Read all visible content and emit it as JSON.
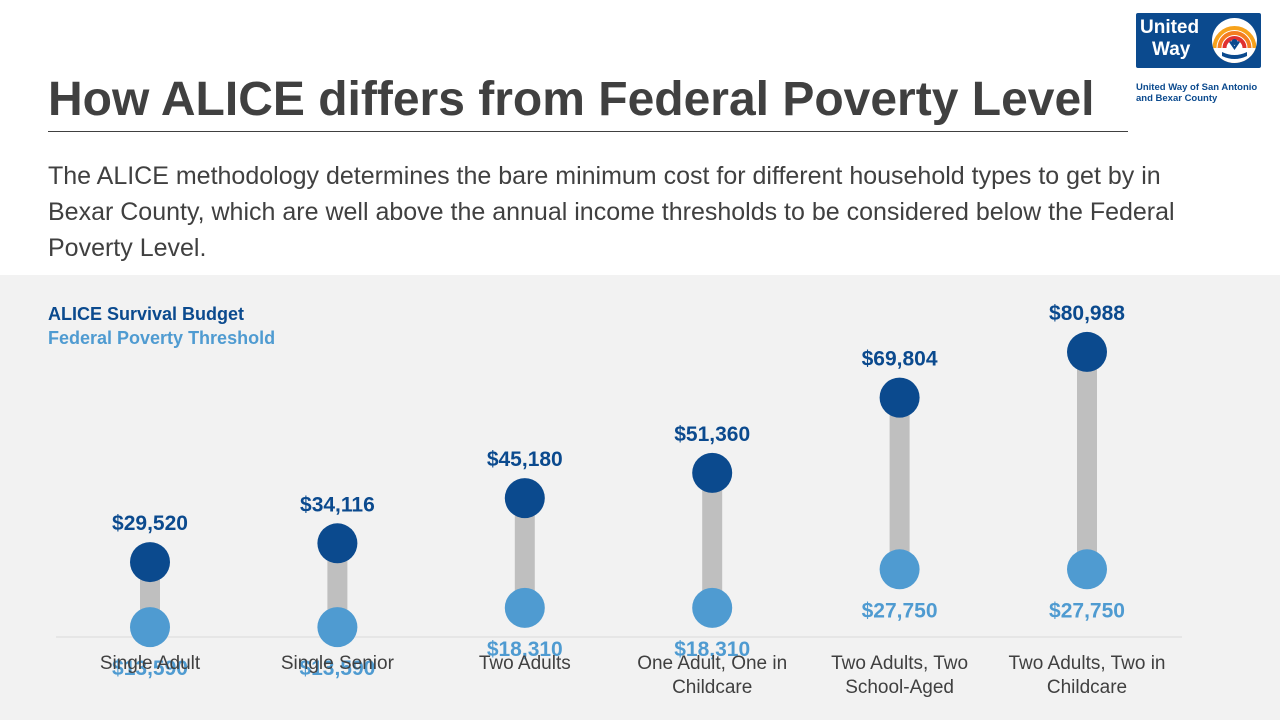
{
  "title": "How ALICE differs from Federal Poverty Level",
  "intro": "The ALICE methodology determines the bare minimum cost for different household types to get by in Bexar County, which are well above the annual income thresholds to be considered below the Federal Poverty Level.",
  "logo": {
    "word1": "United",
    "word2": "Way",
    "caption": "United Way of San Antonio and Bexar County",
    "icon": "united-way-rainbow-hand-icon"
  },
  "colors": {
    "alice": "#0b4a8e",
    "poverty": "#4f9bd1",
    "connector": "#bfbfbf",
    "panel": "#f2f2f2",
    "category_text": "#404040"
  },
  "chart_data": {
    "type": "dumbbell",
    "categories": [
      [
        "Single Adult"
      ],
      [
        "Single Senior"
      ],
      [
        "Two Adults"
      ],
      [
        "One Adult, One in",
        "Childcare"
      ],
      [
        "Two Adults, Two",
        "School-Aged"
      ],
      [
        "Two Adults, Two in",
        "Childcare"
      ]
    ],
    "series": [
      {
        "name": "ALICE Survival Budget",
        "values": [
          29520,
          34116,
          45180,
          51360,
          69804,
          80988
        ],
        "labels": [
          "$29,520",
          "$34,116",
          "$45,180",
          "$51,360",
          "$69,804",
          "$80,988"
        ]
      },
      {
        "name": "Federal Poverty Threshold",
        "values": [
          13590,
          13590,
          18310,
          18310,
          27750,
          27750
        ],
        "labels": [
          "$13,590",
          "$13,590",
          "$18,310",
          "$18,310",
          "$27,750",
          "$27,750"
        ]
      }
    ],
    "xlabel": "",
    "ylabel": "",
    "legend": "top-left",
    "grid": false
  }
}
